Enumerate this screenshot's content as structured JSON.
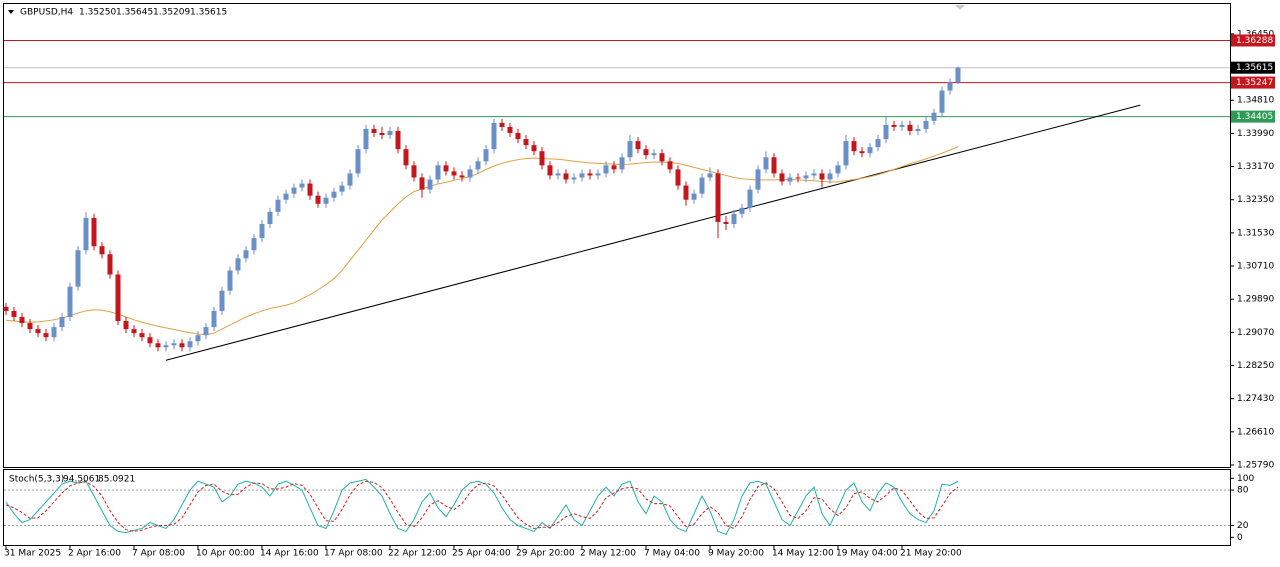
{
  "chart_data": {
    "type": "candlestick",
    "header": {
      "symbol": "GBPUSD,H4",
      "ohlc_labels": [
        "1.35250",
        "1.35645",
        "1.35209",
        "1.35615"
      ]
    },
    "up_color": "#6b8fc7",
    "down_color": "#c4161c",
    "categories": [
      "31 Mar 2025",
      null,
      null,
      null,
      null,
      null,
      null,
      null,
      "2 Apr 16:00",
      null,
      null,
      null,
      null,
      null,
      null,
      null,
      "7 Apr 08:00",
      null,
      null,
      null,
      null,
      null,
      null,
      null,
      "10 Apr 00:00",
      null,
      null,
      null,
      null,
      null,
      null,
      null,
      "14 Apr 16:00",
      null,
      null,
      null,
      null,
      null,
      null,
      null,
      "17 Apr 08:00",
      null,
      null,
      null,
      null,
      null,
      null,
      null,
      "22 Apr 12:00",
      null,
      null,
      null,
      null,
      null,
      null,
      null,
      "25 Apr 04:00",
      null,
      null,
      null,
      null,
      null,
      null,
      null,
      "29 Apr 20:00",
      null,
      null,
      null,
      null,
      null,
      null,
      null,
      "2 May 12:00",
      null,
      null,
      null,
      null,
      null,
      null,
      null,
      "7 May 04:00",
      null,
      null,
      null,
      null,
      null,
      null,
      null,
      "9 May 20:00",
      null,
      null,
      null,
      null,
      null,
      null,
      null,
      "14 May 12:00",
      null,
      null,
      null,
      null,
      null,
      null,
      null,
      "19 May 04:00",
      null,
      null,
      null,
      null,
      null,
      null,
      null,
      "21 May 20:00",
      null,
      null,
      null,
      null,
      null,
      null,
      null
    ],
    "open": [
      1.297,
      1.296,
      1.2945,
      1.293,
      1.2915,
      1.2905,
      1.2895,
      1.292,
      1.2945,
      1.302,
      1.311,
      1.319,
      1.312,
      1.31,
      1.305,
      1.2935,
      1.2915,
      1.2905,
      1.2895,
      1.288,
      1.287,
      1.2875,
      1.288,
      1.287,
      1.2885,
      1.29,
      1.292,
      1.296,
      1.301,
      1.306,
      1.309,
      1.311,
      1.314,
      1.3175,
      1.3205,
      1.3235,
      1.325,
      1.3265,
      1.3275,
      1.3245,
      1.3225,
      1.324,
      1.3255,
      1.327,
      1.33,
      1.336,
      1.341,
      1.34,
      1.3395,
      1.3405,
      1.336,
      1.332,
      1.329,
      1.326,
      1.3285,
      1.332,
      1.3305,
      1.3295,
      1.329,
      1.331,
      1.333,
      1.336,
      1.3425,
      1.3415,
      1.34,
      1.3385,
      1.337,
      1.3355,
      1.332,
      1.3295,
      1.33,
      1.3285,
      1.329,
      1.33,
      1.3295,
      1.33,
      1.332,
      1.331,
      1.334,
      1.338,
      1.336,
      1.3345,
      1.335,
      1.333,
      1.331,
      1.327,
      1.3235,
      1.325,
      1.329,
      1.33,
      1.318,
      1.3175,
      1.32,
      1.3215,
      1.326,
      1.331,
      1.334,
      1.33,
      1.328,
      1.329,
      1.3288,
      1.3295,
      1.33,
      1.3285,
      1.33,
      1.332,
      1.338,
      1.3355,
      1.335,
      1.3365,
      1.3385,
      1.342,
      1.3415,
      1.342,
      1.3405,
      1.341,
      1.343,
      1.345,
      1.3505,
      1.3525
    ],
    "high": [
      1.298,
      1.297,
      1.2955,
      1.294,
      1.2925,
      1.2915,
      1.293,
      1.2955,
      1.303,
      1.312,
      1.3204,
      1.32,
      1.313,
      1.311,
      1.306,
      1.2945,
      1.2925,
      1.2915,
      1.2905,
      1.289,
      1.2885,
      1.289,
      1.289,
      1.2895,
      1.291,
      1.293,
      1.297,
      1.302,
      1.307,
      1.31,
      1.312,
      1.315,
      1.3185,
      1.3215,
      1.3245,
      1.326,
      1.3275,
      1.3285,
      1.3285,
      1.3255,
      1.325,
      1.3265,
      1.328,
      1.331,
      1.337,
      1.342,
      1.342,
      1.3415,
      1.3415,
      1.3415,
      1.337,
      1.333,
      1.33,
      1.3295,
      1.333,
      1.333,
      1.3315,
      1.3305,
      1.332,
      1.334,
      1.337,
      1.3435,
      1.3435,
      1.3425,
      1.341,
      1.3395,
      1.338,
      1.3365,
      1.333,
      1.331,
      1.331,
      1.33,
      1.331,
      1.331,
      1.331,
      1.333,
      1.333,
      1.335,
      1.3395,
      1.339,
      1.337,
      1.336,
      1.336,
      1.334,
      1.332,
      1.328,
      1.326,
      1.33,
      1.3315,
      1.331,
      1.3195,
      1.321,
      1.3225,
      1.327,
      1.332,
      1.3355,
      1.335,
      1.331,
      1.33,
      1.33,
      1.3305,
      1.331,
      1.331,
      1.331,
      1.333,
      1.3395,
      1.339,
      1.3365,
      1.3375,
      1.3395,
      1.344,
      1.343,
      1.343,
      1.343,
      1.342,
      1.344,
      1.346,
      1.3515,
      1.3535,
      1.35645
    ],
    "low": [
      1.295,
      1.2935,
      1.292,
      1.2905,
      1.2895,
      1.2885,
      1.2885,
      1.291,
      1.2935,
      1.301,
      1.31,
      1.311,
      1.309,
      1.304,
      1.2925,
      1.2905,
      1.2895,
      1.2885,
      1.287,
      1.286,
      1.286,
      1.2865,
      1.286,
      1.286,
      1.2875,
      1.289,
      1.291,
      1.295,
      1.3,
      1.305,
      1.308,
      1.31,
      1.313,
      1.3165,
      1.3195,
      1.3225,
      1.324,
      1.3255,
      1.3235,
      1.3215,
      1.3215,
      1.323,
      1.3245,
      1.326,
      1.329,
      1.335,
      1.339,
      1.3385,
      1.3385,
      1.335,
      1.331,
      1.328,
      1.324,
      1.325,
      1.3275,
      1.3295,
      1.3285,
      1.328,
      1.328,
      1.33,
      1.332,
      1.335,
      1.3405,
      1.339,
      1.3375,
      1.336,
      1.3345,
      1.331,
      1.3285,
      1.3285,
      1.3275,
      1.3275,
      1.328,
      1.3285,
      1.3285,
      1.329,
      1.33,
      1.33,
      1.333,
      1.335,
      1.3335,
      1.3335,
      1.332,
      1.33,
      1.326,
      1.322,
      1.3225,
      1.324,
      1.328,
      1.314,
      1.316,
      1.3165,
      1.319,
      1.3205,
      1.325,
      1.33,
      1.329,
      1.327,
      1.327,
      1.3278,
      1.3278,
      1.3285,
      1.3265,
      1.3275,
      1.329,
      1.331,
      1.3345,
      1.334,
      1.334,
      1.3355,
      1.3375,
      1.3405,
      1.3405,
      1.3395,
      1.3395,
      1.34,
      1.342,
      1.344,
      1.3495,
      1.35209
    ],
    "close": [
      1.296,
      1.2945,
      1.293,
      1.2915,
      1.2905,
      1.2895,
      1.292,
      1.2945,
      1.302,
      1.311,
      1.319,
      1.312,
      1.31,
      1.305,
      1.2935,
      1.2915,
      1.2905,
      1.2895,
      1.288,
      1.287,
      1.2875,
      1.288,
      1.287,
      1.2885,
      1.29,
      1.292,
      1.296,
      1.301,
      1.306,
      1.309,
      1.311,
      1.314,
      1.3175,
      1.3205,
      1.3235,
      1.325,
      1.3265,
      1.3275,
      1.3245,
      1.3225,
      1.324,
      1.3255,
      1.327,
      1.33,
      1.336,
      1.341,
      1.34,
      1.3395,
      1.3405,
      1.336,
      1.332,
      1.329,
      1.326,
      1.3285,
      1.332,
      1.3305,
      1.3295,
      1.329,
      1.331,
      1.333,
      1.336,
      1.3425,
      1.3415,
      1.34,
      1.3385,
      1.337,
      1.3355,
      1.332,
      1.3295,
      1.33,
      1.3285,
      1.329,
      1.33,
      1.3295,
      1.33,
      1.332,
      1.331,
      1.334,
      1.338,
      1.336,
      1.3345,
      1.335,
      1.333,
      1.331,
      1.327,
      1.3235,
      1.325,
      1.329,
      1.33,
      1.318,
      1.3175,
      1.32,
      1.3215,
      1.326,
      1.331,
      1.334,
      1.33,
      1.328,
      1.329,
      1.3288,
      1.3295,
      1.33,
      1.3285,
      1.33,
      1.332,
      1.338,
      1.3355,
      1.335,
      1.3365,
      1.3385,
      1.342,
      1.3415,
      1.342,
      1.3405,
      1.341,
      1.343,
      1.345,
      1.3505,
      1.3525,
      1.35615
    ],
    "ma": {
      "color": "#e0a040",
      "values": [
        1.2937,
        1.2935,
        1.2933,
        1.2932,
        1.2933,
        1.2935,
        1.2938,
        1.2942,
        1.2948,
        1.2955,
        1.296,
        1.2963,
        1.2962,
        1.2958,
        1.2952,
        1.2945,
        1.2938,
        1.2932,
        1.2927,
        1.2922,
        1.2918,
        1.2914,
        1.291,
        1.2906,
        1.2903,
        1.2901,
        1.2905,
        1.2915,
        1.2925,
        1.2935,
        1.2945,
        1.2953,
        1.296,
        1.2966,
        1.297,
        1.2974,
        1.298,
        1.299,
        1.3,
        1.3012,
        1.3025,
        1.304,
        1.306,
        1.3085,
        1.311,
        1.3135,
        1.316,
        1.3185,
        1.3205,
        1.3225,
        1.3242,
        1.3255,
        1.3262,
        1.3268,
        1.3274,
        1.3278,
        1.3283,
        1.3287,
        1.3292,
        1.33,
        1.331,
        1.3318,
        1.3325,
        1.333,
        1.3334,
        1.3337,
        1.3338,
        1.3337,
        1.3336,
        1.3335,
        1.3333,
        1.333,
        1.3328,
        1.3326,
        1.3325,
        1.3324,
        1.3323,
        1.3322,
        1.3323,
        1.3325,
        1.3327,
        1.3328,
        1.3328,
        1.3327,
        1.3325,
        1.332,
        1.3315,
        1.331,
        1.3305,
        1.33,
        1.3295,
        1.329,
        1.3287,
        1.3285,
        1.3284,
        1.3284,
        1.3284,
        1.3285,
        1.3285,
        1.3284,
        1.3283,
        1.3282,
        1.328,
        1.3279,
        1.3279,
        1.3282,
        1.3285,
        1.3288,
        1.3292,
        1.3297,
        1.3303,
        1.331,
        1.3317,
        1.3324,
        1.333,
        1.3336,
        1.3343,
        1.335,
        1.3358,
        1.3366
      ]
    },
    "trendline": {
      "color": "#000000",
      "values": [
        1.2838,
        1.3469
      ]
    },
    "levels": [
      {
        "value": 1.36288,
        "color": "#c4161c"
      },
      {
        "value": 1.35615,
        "color": "#000000",
        "line_color": "#c0c0c0"
      },
      {
        "value": 1.35247,
        "color": "#c4161c"
      },
      {
        "value": 1.34405,
        "color": "#2e9a56"
      }
    ],
    "ylim": [
      1.2574,
      1.3719
    ],
    "yticks": [
      {
        "value": 1.3645,
        "label": "1.36450"
      },
      {
        "value": 1.3481,
        "label": "1.34810"
      },
      {
        "value": 1.3399,
        "label": "1.33990"
      },
      {
        "value": 1.3317,
        "label": "1.33170"
      },
      {
        "value": 1.3235,
        "label": "1.32350"
      },
      {
        "value": 1.3153,
        "label": "1.31530"
      },
      {
        "value": 1.3071,
        "label": "1.30710"
      },
      {
        "value": 1.2989,
        "label": "1.29890"
      },
      {
        "value": 1.2907,
        "label": "1.29070"
      },
      {
        "value": 1.2825,
        "label": "1.28250"
      },
      {
        "value": 1.2743,
        "label": "1.27430"
      },
      {
        "value": 1.2661,
        "label": "1.26610"
      },
      {
        "value": 1.2579,
        "label": "1.25790"
      }
    ],
    "stoch": {
      "name": "Stoch(5,3,3)",
      "ylim": [
        -13,
        114
      ],
      "yticks": [
        100,
        80,
        20,
        0
      ],
      "levels": [
        80,
        20
      ],
      "main": {
        "color": "#20b2aa",
        "values": [
          60,
          40,
          25,
          30,
          45,
          60,
          75,
          90,
          95,
          92,
          95,
          70,
          45,
          20,
          10,
          8,
          12,
          15,
          25,
          20,
          15,
          30,
          55,
          80,
          95,
          90,
          85,
          60,
          70,
          90,
          95,
          92,
          85,
          70,
          90,
          95,
          88,
          80,
          50,
          20,
          15,
          45,
          80,
          92,
          95,
          98,
          85,
          70,
          40,
          15,
          10,
          30,
          60,
          75,
          50,
          35,
          55,
          80,
          92,
          95,
          90,
          75,
          50,
          30,
          20,
          15,
          10,
          25,
          15,
          35,
          55,
          30,
          20,
          45,
          70,
          85,
          70,
          90,
          95,
          60,
          40,
          70,
          60,
          30,
          15,
          10,
          40,
          70,
          45,
          10,
          5,
          30,
          70,
          92,
          95,
          90,
          60,
          30,
          20,
          45,
          70,
          85,
          40,
          20,
          50,
          80,
          92,
          60,
          45,
          75,
          92,
          85,
          60,
          40,
          30,
          25,
          45,
          90,
          88,
          94.5061
        ]
      },
      "signal": {
        "color": "#d02020",
        "values": [
          55,
          50,
          42,
          32,
          33,
          45,
          60,
          75,
          87,
          92,
          94,
          86,
          70,
          45,
          25,
          13,
          10,
          12,
          17,
          20,
          20,
          22,
          33,
          55,
          77,
          88,
          90,
          78,
          72,
          73,
          85,
          92,
          91,
          82,
          82,
          85,
          91,
          88,
          73,
          50,
          28,
          27,
          47,
          72,
          89,
          95,
          93,
          84,
          65,
          42,
          22,
          18,
          33,
          55,
          62,
          53,
          47,
          57,
          76,
          89,
          92,
          87,
          72,
          52,
          33,
          22,
          15,
          17,
          17,
          25,
          35,
          40,
          35,
          32,
          45,
          67,
          75,
          82,
          85,
          82,
          65,
          57,
          57,
          53,
          35,
          18,
          22,
          40,
          52,
          42,
          20,
          15,
          35,
          64,
          86,
          92,
          82,
          60,
          37,
          32,
          45,
          67,
          65,
          48,
          37,
          50,
          74,
          77,
          66,
          60,
          71,
          84,
          79,
          62,
          43,
          32,
          33,
          53,
          74,
          85.0921
        ]
      }
    }
  }
}
